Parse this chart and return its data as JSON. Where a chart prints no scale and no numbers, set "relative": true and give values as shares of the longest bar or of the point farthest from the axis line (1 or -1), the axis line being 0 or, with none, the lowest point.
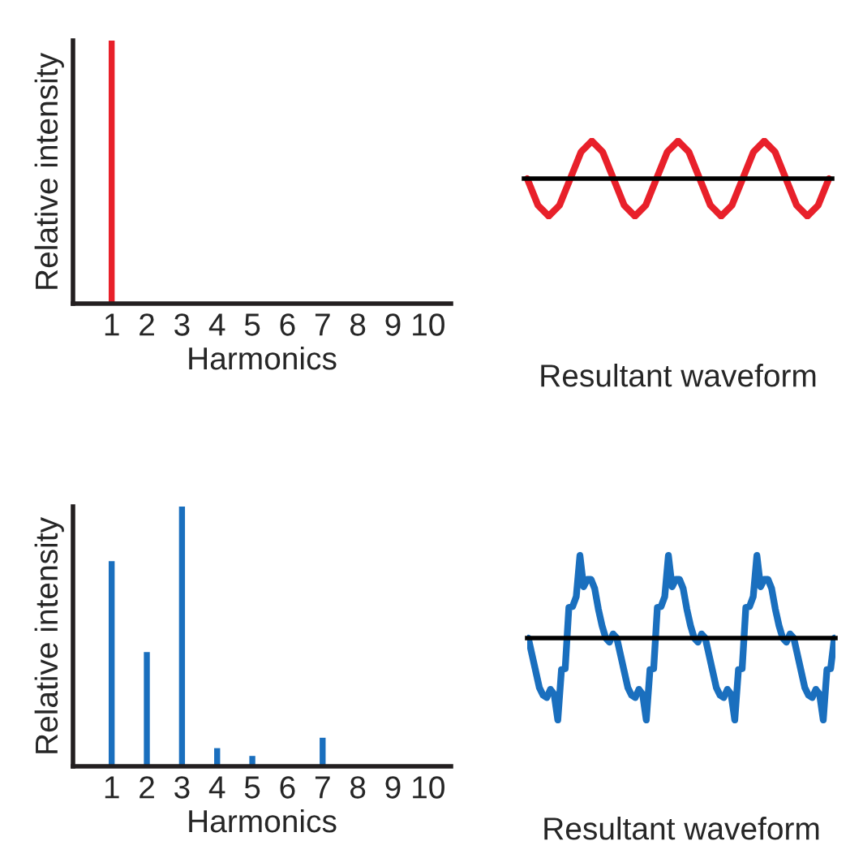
{
  "chart_data": [
    {
      "type": "bar",
      "relative": true,
      "xlabel": "Harmonics",
      "ylabel": "Relative intensity",
      "tick_labels": "x",
      "grid": false,
      "legend": false,
      "categories": [
        "1",
        "2",
        "3",
        "4",
        "5",
        "6",
        "7",
        "8",
        "9",
        "10"
      ],
      "series": [
        {
          "color": "#e8202a",
          "values": [
            1,
            0,
            0,
            0,
            0,
            0,
            0,
            0,
            0,
            0
          ]
        }
      ]
    },
    {
      "type": "line",
      "relative": true,
      "xlabel": "Resultant waveform",
      "tick_labels": false,
      "grid": false,
      "legend": false,
      "marker": "none",
      "line_style": "solid",
      "categories": [
        null,
        null,
        null,
        null,
        null,
        null,
        null,
        null,
        null,
        null,
        null,
        null,
        null,
        null,
        null,
        null,
        null,
        null,
        null,
        null,
        null,
        null,
        null,
        null,
        null,
        null,
        null,
        null,
        null
      ],
      "series": [
        {
          "color": "#e8202a",
          "values": [
            0,
            -0.71,
            -1,
            -0.71,
            0,
            0.71,
            1,
            0.71,
            0,
            -0.71,
            -1,
            -0.71,
            0,
            0.71,
            1,
            0.71,
            0,
            -0.71,
            -1,
            -0.71,
            0,
            0.71,
            1,
            0.71,
            0,
            -0.71,
            -1,
            -0.71,
            0
          ]
        }
      ]
    },
    {
      "type": "bar",
      "relative": true,
      "xlabel": "Harmonics",
      "ylabel": "Relative intensity",
      "tick_labels": "x",
      "grid": false,
      "legend": false,
      "categories": [
        "1",
        "2",
        "3",
        "4",
        "5",
        "6",
        "7",
        "8",
        "9",
        "10"
      ],
      "series": [
        {
          "color": "#1a6fbe",
          "values": [
            0.79,
            0.44,
            1,
            0.07,
            0.04,
            0,
            0.11,
            0,
            0,
            0
          ]
        }
      ]
    },
    {
      "type": "line",
      "relative": true,
      "xlabel": "Resultant waveform",
      "tick_labels": false,
      "grid": false,
      "legend": false,
      "marker": "none",
      "line_style": "solid",
      "categories": [
        null,
        null,
        null,
        null,
        null,
        null,
        null,
        null,
        null,
        null,
        null,
        null,
        null,
        null,
        null,
        null,
        null,
        null,
        null,
        null,
        null,
        null,
        null,
        null,
        null,
        null,
        null,
        null,
        null,
        null,
        null,
        null,
        null,
        null,
        null,
        null,
        null,
        null,
        null,
        null,
        null,
        null,
        null,
        null,
        null,
        null,
        null,
        null,
        null,
        null,
        null,
        null,
        null,
        null,
        null,
        null,
        null,
        null,
        null,
        null,
        null,
        null,
        null,
        null,
        null,
        null,
        null,
        null,
        null,
        null,
        null,
        null,
        null,
        null,
        null,
        null,
        null,
        null,
        null,
        null,
        null,
        null,
        null,
        null
      ],
      "series": [
        {
          "color": "#1a6fbe",
          "values": [
            0,
            -0.2,
            -0.4,
            -0.6,
            -0.69,
            -0.72,
            -0.62,
            -0.68,
            -0.99,
            -0.38,
            -0.37,
            0.37,
            0.38,
            0.5,
            1,
            0.62,
            0.71,
            0.71,
            0.6,
            0.35,
            0.15,
            0,
            -0.05,
            0.05,
            0,
            -0.2,
            -0.4,
            -0.6,
            -0.69,
            -0.72,
            -0.62,
            -0.68,
            -0.99,
            -0.38,
            -0.37,
            0.37,
            0.38,
            0.5,
            1,
            0.62,
            0.71,
            0.71,
            0.6,
            0.35,
            0.15,
            0,
            -0.05,
            0.05,
            0,
            -0.2,
            -0.4,
            -0.6,
            -0.69,
            -0.72,
            -0.62,
            -0.68,
            -0.99,
            -0.38,
            -0.37,
            0.37,
            0.38,
            0.5,
            1,
            0.62,
            0.71,
            0.71,
            0.6,
            0.35,
            0.15,
            0,
            -0.05,
            0.05,
            0,
            -0.2,
            -0.4,
            -0.6,
            -0.69,
            -0.72,
            -0.62,
            -0.68,
            -0.99,
            -0.38,
            -0.37,
            0
          ]
        }
      ]
    }
  ]
}
